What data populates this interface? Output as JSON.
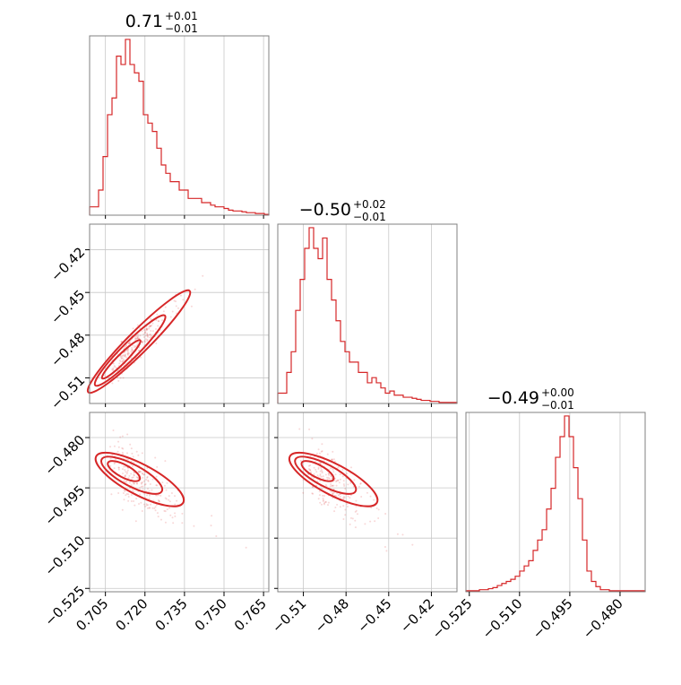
{
  "chart_data": {
    "type": "corner",
    "color": "#d62728",
    "parameters": [
      {
        "index": 0,
        "range": [
          0.699,
          0.767
        ],
        "ticks": [
          "0.705",
          "0.720",
          "0.735",
          "0.750",
          "0.765"
        ],
        "tick_values": [
          0.705,
          0.72,
          0.735,
          0.75,
          0.765
        ],
        "title": {
          "median": "0.71",
          "plus": "+0.01",
          "minus": "−0.01"
        }
      },
      {
        "index": 1,
        "range": [
          -0.528,
          -0.402
        ],
        "ticks": [
          "−0.51",
          "−0.48",
          "−0.45",
          "−0.42"
        ],
        "tick_values": [
          -0.51,
          -0.48,
          -0.45,
          -0.42
        ],
        "title": {
          "median": "−0.50",
          "plus": "+0.02",
          "minus": "−0.01"
        }
      },
      {
        "index": 2,
        "range": [
          -0.526,
          -0.4725
        ],
        "ticks": [
          "−0.525",
          "−0.510",
          "−0.495",
          "−0.480"
        ],
        "tick_values": [
          -0.525,
          -0.51,
          -0.495,
          -0.48
        ],
        "title": {
          "median": "−0.49",
          "plus": "+0.00",
          "minus": "−0.01"
        }
      }
    ],
    "histograms": [
      {
        "param": 0,
        "counts": [
          1,
          1,
          3,
          7,
          12,
          14,
          19,
          18,
          21,
          18,
          17,
          16,
          12,
          11,
          10,
          8,
          6,
          5,
          4,
          4,
          3,
          3,
          2,
          2,
          2,
          1.5,
          1.5,
          1.2,
          1,
          1,
          0.8,
          0.6,
          0.5,
          0.5,
          0.4,
          0.3,
          0.3,
          0.2,
          0.2,
          0.1
        ]
      },
      {
        "param": 1,
        "counts": [
          1,
          1,
          3,
          5,
          9,
          12,
          15,
          17,
          15,
          14,
          16,
          12,
          10,
          8,
          6,
          5,
          4,
          4,
          3,
          3,
          2,
          2.5,
          2,
          1.5,
          1,
          1.2,
          0.8,
          0.8,
          0.6,
          0.6,
          0.5,
          0.4,
          0.3,
          0.3,
          0.2,
          0.2,
          0.1,
          0.1,
          0.1,
          0.1
        ]
      },
      {
        "param": 2,
        "counts": [
          0.1,
          0.1,
          0.1,
          0.2,
          0.2,
          0.3,
          0.4,
          0.6,
          0.8,
          1,
          1.2,
          1.5,
          2,
          2.5,
          3,
          4,
          5,
          6,
          8,
          10,
          13,
          15,
          17,
          15,
          12,
          9,
          5,
          2,
          1,
          0.5,
          0.2,
          0.2,
          0.1,
          0.1,
          0.1,
          0.1,
          0.1,
          0.1,
          0.1,
          0.1
        ]
      }
    ],
    "pairs": [
      {
        "x_param": 0,
        "y_param": 1,
        "center": [
          0.711,
          -0.497
        ],
        "correlation": 0.97
      },
      {
        "x_param": 0,
        "y_param": 2,
        "center": [
          0.712,
          -0.49
        ],
        "correlation": -0.85
      },
      {
        "x_param": 1,
        "y_param": 2,
        "center": [
          -0.5,
          -0.49
        ],
        "correlation": -0.85
      }
    ],
    "grid": true
  }
}
